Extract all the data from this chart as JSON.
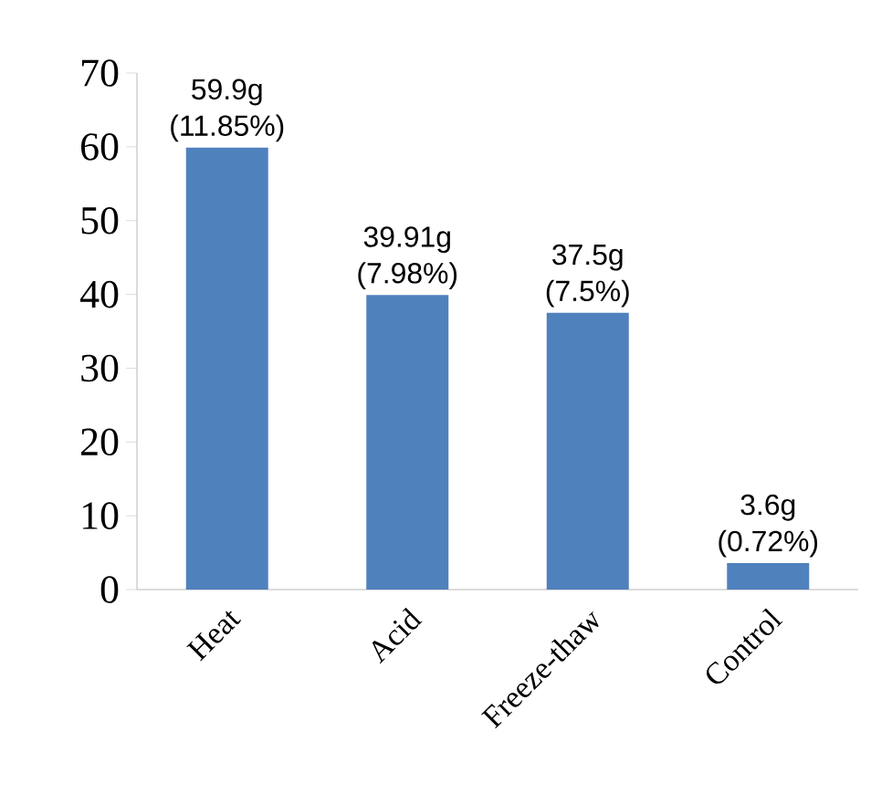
{
  "chart_data": {
    "type": "bar",
    "categories": [
      "Heat",
      "Acid",
      "Freeze-thaw",
      "Control"
    ],
    "values": [
      59.9,
      39.91,
      37.5,
      3.6
    ],
    "value_labels": [
      "59.9g (11.85%)",
      "39.91g (7.98%)",
      "37.5g (7.5%)",
      "3.6g (0.72%)"
    ],
    "color": "#4f81bd",
    "ylim": [
      0,
      70
    ],
    "yticks": [
      0,
      10,
      20,
      30,
      40,
      50,
      60,
      70
    ],
    "grid": false
  }
}
